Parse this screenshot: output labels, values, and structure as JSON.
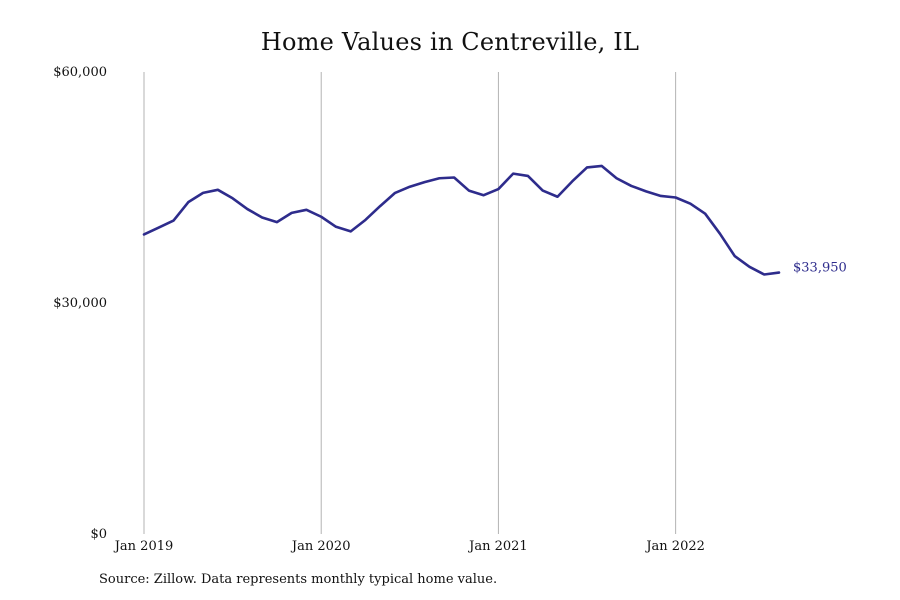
{
  "chart_data": {
    "type": "line",
    "title": "Home Values in Centreville, IL",
    "xlabel": "",
    "ylabel": "",
    "ylim": [
      0,
      60000
    ],
    "y_ticks": [
      {
        "value": 0,
        "label": "$0"
      },
      {
        "value": 30000,
        "label": "$30,000"
      },
      {
        "value": 60000,
        "label": "$60,000"
      }
    ],
    "x_ticks": [
      {
        "value": "2019-01",
        "label": "Jan 2019"
      },
      {
        "value": "2020-01",
        "label": "Jan 2020"
      },
      {
        "value": "2021-01",
        "label": "Jan 2021"
      },
      {
        "value": "2022-01",
        "label": "Jan 2022"
      }
    ],
    "xlim": [
      "2019-01",
      "2022-08"
    ],
    "grid": {
      "vertical": true,
      "horizontal": false
    },
    "line_color": "#2e2c8c",
    "series": [
      {
        "name": "",
        "x": [
          "2019-01",
          "2019-02",
          "2019-03",
          "2019-04",
          "2019-05",
          "2019-06",
          "2019-07",
          "2019-08",
          "2019-09",
          "2019-10",
          "2019-11",
          "2019-12",
          "2020-01",
          "2020-02",
          "2020-03",
          "2020-04",
          "2020-05",
          "2020-06",
          "2020-07",
          "2020-08",
          "2020-09",
          "2020-10",
          "2020-11",
          "2020-12",
          "2021-01",
          "2021-02",
          "2021-03",
          "2021-04",
          "2021-05",
          "2021-06",
          "2021-07",
          "2021-08",
          "2021-09",
          "2021-10",
          "2021-11",
          "2021-12",
          "2022-01",
          "2022-02",
          "2022-03",
          "2022-04",
          "2022-05",
          "2022-06",
          "2022-07",
          "2022-08"
        ],
        "values": [
          38900,
          39800,
          40700,
          43100,
          44300,
          44700,
          43600,
          42200,
          41100,
          40500,
          41700,
          42100,
          41200,
          39900,
          39300,
          40800,
          42600,
          44300,
          45100,
          45700,
          46200,
          46300,
          44600,
          44000,
          44800,
          46800,
          46500,
          44600,
          43800,
          45800,
          47600,
          47800,
          46200,
          45200,
          44500,
          43900,
          43700,
          42900,
          41600,
          39000,
          36100,
          34700,
          33700,
          33950
        ],
        "end_label": "$33,950"
      }
    ]
  },
  "source": "Source: Zillow. Data represents monthly typical home value."
}
